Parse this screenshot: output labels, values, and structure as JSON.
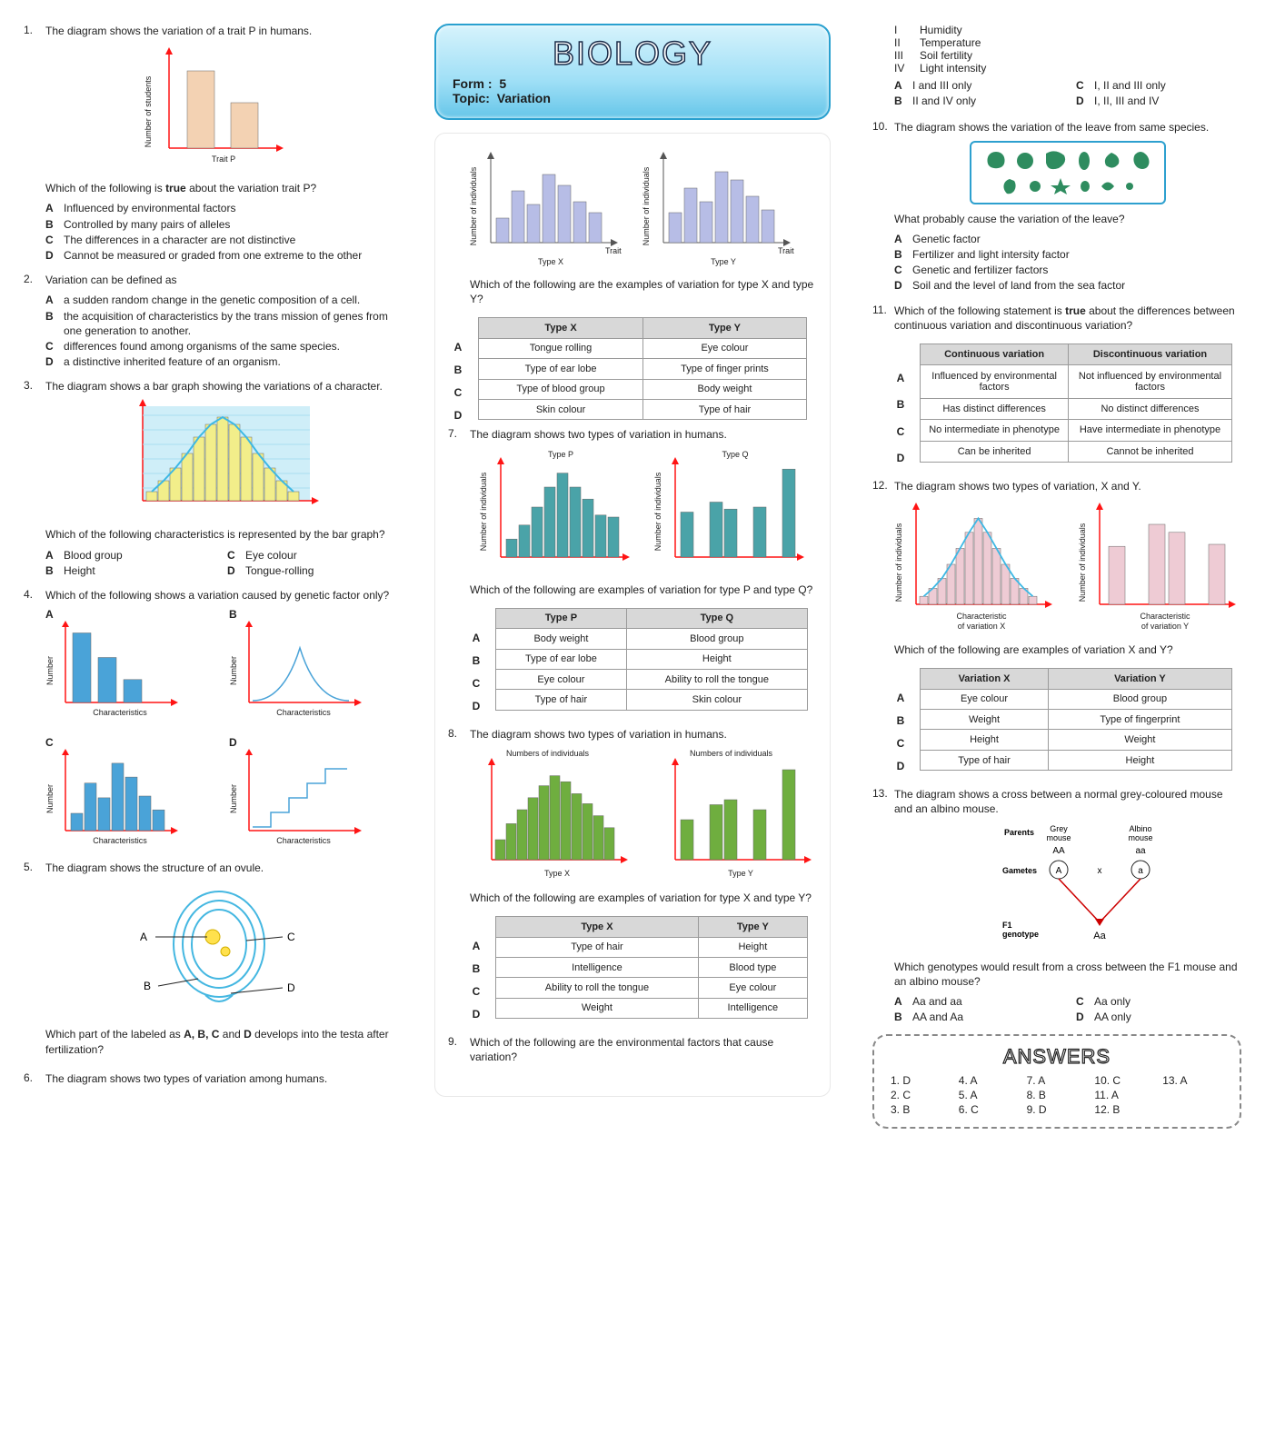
{
  "header": {
    "title": "BIOLOGY",
    "form_label": "Form :",
    "form_value": "5",
    "topic_label": "Topic:",
    "topic_value": "Variation"
  },
  "q1": {
    "num": "1.",
    "text": "The diagram shows the variation of a trait P in humans.",
    "chart": {
      "type": "bar",
      "values": [
        85,
        50
      ],
      "bar_color": "#f3d2b3",
      "axis_color": "#ff1414",
      "xlabel": "Trait P",
      "ylabel": "Number of students"
    },
    "ask_pre": "Which of the following is ",
    "ask_bold": "true",
    "ask_post": " about the variation trait P?",
    "opts": [
      {
        "l": "A",
        "t": "Influenced by environmental factors"
      },
      {
        "l": "B",
        "t": "Controlled by many pairs of alleles"
      },
      {
        "l": "C",
        "t": "The differences in a character are not distinctive"
      },
      {
        "l": "D",
        "t": "Cannot be measured or graded from one extreme to the other"
      }
    ]
  },
  "q2": {
    "num": "2.",
    "text": "Variation can be defined as",
    "opts": [
      {
        "l": "A",
        "t": "a sudden random change in the genetic composition of a cell."
      },
      {
        "l": "B",
        "t": "the acquisition of characteristics by the trans mission of genes from one generation to another."
      },
      {
        "l": "C",
        "t": "differences found among organisms of the same species."
      },
      {
        "l": "D",
        "t": "a distinctive inherited feature of an organism."
      }
    ]
  },
  "q3": {
    "num": "3.",
    "text": "The diagram shows a bar graph showing the variations of a character.",
    "chart": {
      "type": "bar-with-curve",
      "values": [
        10,
        22,
        36,
        52,
        70,
        84,
        92,
        84,
        70,
        52,
        36,
        22,
        10
      ],
      "bar_color": "#f2ee8a",
      "curve_color": "#3db8e4",
      "axis_color": "#ff1414",
      "bg": "#cfeef8"
    },
    "ask": "Which of the following characteristics is represented by the bar graph?",
    "opts": [
      {
        "l": "A",
        "t": "Blood group"
      },
      {
        "l": "C",
        "t": "Eye colour"
      },
      {
        "l": "B",
        "t": "Height"
      },
      {
        "l": "D",
        "t": "Tongue-rolling"
      }
    ]
  },
  "q4": {
    "num": "4.",
    "text": "Which of the following shows a variation caused by genetic factor only?",
    "xlabel": "Characteristics",
    "ylabel": "Number",
    "axis_color": "#ff1414",
    "A": {
      "type": "bar",
      "values": [
        85,
        55,
        28
      ],
      "bar_color": "#4aa3d8"
    },
    "B": {
      "type": "curve",
      "curve_color": "#4aa3d8"
    },
    "C": {
      "type": "bar",
      "values": [
        20,
        55,
        38,
        78,
        62,
        40,
        24
      ],
      "bar_color": "#4aa3d8"
    },
    "D": {
      "type": "step",
      "line_color": "#4aa3d8"
    }
  },
  "q5": {
    "num": "5.",
    "text": "The diagram shows the structure of an ovule.",
    "ovule_outer": "#44b7e1",
    "ovule_inner": "#ffe14d",
    "labels": [
      "A",
      "B",
      "C",
      "D"
    ],
    "ask_pre": "Which part of the labeled as ",
    "ask_bold": "A, B, C",
    "ask_mid": " and ",
    "ask_bold2": "D",
    "ask_post": " develops into the testa after fertilization?"
  },
  "q6_intro": {
    "num": "6.",
    "text": "The diagram shows two types of variation among humans."
  },
  "q6_charts": {
    "left": {
      "type": "bar",
      "values": [
        18,
        38,
        28,
        50,
        42,
        30,
        22
      ],
      "bar_color": "#b7bde6",
      "axis_color": "#555",
      "xlabel": "Trait",
      "ylabel": "Number of individuals",
      "title": "Type X"
    },
    "right": {
      "type": "bar",
      "values": [
        22,
        40,
        30,
        52,
        46,
        34,
        24
      ],
      "bar_color": "#b7bde6",
      "axis_color": "#555",
      "xlabel": "Trait",
      "ylabel": "Number of individuals",
      "title": "Type Y"
    },
    "ask": "Which of the following are the examples of variation for type X and type Y?",
    "table": {
      "headers": [
        "Type X",
        "Type Y"
      ],
      "rows": [
        {
          "l": "A",
          "c": [
            "Tongue rolling",
            "Eye colour"
          ]
        },
        {
          "l": "B",
          "c": [
            "Type of ear lobe",
            "Type of finger prints"
          ]
        },
        {
          "l": "C",
          "c": [
            "Type of blood group",
            "Body weight"
          ]
        },
        {
          "l": "D",
          "c": [
            "Skin colour",
            "Type of hair"
          ]
        }
      ]
    }
  },
  "q7": {
    "num": "7.",
    "text": "The diagram shows two types of variation in humans.",
    "left": {
      "title": "Type P",
      "values": [
        18,
        32,
        50,
        70,
        84,
        70,
        58,
        42,
        40
      ],
      "bar_color": "#4aa3a8",
      "axis_color": "#ff1414",
      "ylabel": "Number of individuals"
    },
    "right": {
      "title": "Type Q",
      "values": [
        45,
        0,
        55,
        48,
        0,
        50,
        0,
        88
      ],
      "bar_color": "#4aa3a8",
      "axis_color": "#ff1414",
      "ylabel": "Number of individuals"
    },
    "ask": "Which of the following are examples of variation for type P and type Q?",
    "table": {
      "headers": [
        "Type P",
        "Type Q"
      ],
      "rows": [
        {
          "l": "A",
          "c": [
            "Body weight",
            "Blood group"
          ]
        },
        {
          "l": "B",
          "c": [
            "Type of ear lobe",
            "Height"
          ]
        },
        {
          "l": "C",
          "c": [
            "Eye colour",
            "Ability to roll the tongue"
          ]
        },
        {
          "l": "D",
          "c": [
            "Type of hair",
            "Skin colour"
          ]
        }
      ]
    }
  },
  "q8": {
    "num": "8.",
    "text": "The diagram shows two types of variation in humans.",
    "ylabel": "Numbers of individuals",
    "left": {
      "title": "Type X",
      "values": [
        20,
        36,
        50,
        62,
        74,
        84,
        78,
        66,
        56,
        44,
        32
      ],
      "bar_color": "#6fae3f",
      "axis_color": "#ff1414"
    },
    "right": {
      "title": "Type Y",
      "values": [
        40,
        0,
        55,
        60,
        0,
        50,
        0,
        90
      ],
      "bar_color": "#6fae3f",
      "axis_color": "#ff1414"
    },
    "ask": "Which of the following are examples of variation for type X and type Y?",
    "table": {
      "headers": [
        "Type X",
        "Type Y"
      ],
      "rows": [
        {
          "l": "A",
          "c": [
            "Type of hair",
            "Height"
          ]
        },
        {
          "l": "B",
          "c": [
            "Intelligence",
            "Blood type"
          ]
        },
        {
          "l": "C",
          "c": [
            "Ability to roll the tongue",
            "Eye colour"
          ]
        },
        {
          "l": "D",
          "c": [
            "Weight",
            "Intelligence"
          ]
        }
      ]
    }
  },
  "q9_intro": {
    "num": "9.",
    "text": "Which of the following are the environmental factors that cause variation?"
  },
  "q9_roman": [
    {
      "n": "I",
      "t": "Humidity"
    },
    {
      "n": "II",
      "t": "Temperature"
    },
    {
      "n": "III",
      "t": "Soil fertility"
    },
    {
      "n": "IV",
      "t": "Light intensity"
    }
  ],
  "q9_opts": [
    {
      "l": "A",
      "t": "I and III only"
    },
    {
      "l": "C",
      "t": "I, II and III only"
    },
    {
      "l": "B",
      "t": "II and IV only"
    },
    {
      "l": "D",
      "t": "I, II, III and IV"
    }
  ],
  "q10": {
    "num": "10.",
    "text": "The diagram shows the variation of the leave from same species.",
    "leaf_fill": "#2e8c5f",
    "leaf_border": "#2da0cf",
    "ask": "What probably cause the variation of the leave?",
    "opts": [
      {
        "l": "A",
        "t": "Genetic factor"
      },
      {
        "l": "B",
        "t": "Fertilizer and light intersity factor"
      },
      {
        "l": "C",
        "t": "Genetic and fertilizer factors"
      },
      {
        "l": "D",
        "t": "Soil and the level of land from the sea factor"
      }
    ]
  },
  "q11": {
    "num": "11.",
    "text_pre": "Which of the following statement is ",
    "text_bold": "true",
    "text_post": " about the differences between continuous variation and discontinuous variation?",
    "table": {
      "headers": [
        "Continuous variation",
        "Discontinuous variation"
      ],
      "rows": [
        {
          "l": "A",
          "c": [
            "Influenced by environmental  factors",
            "Not influenced by environmental factors"
          ]
        },
        {
          "l": "B",
          "c": [
            "Has distinct differences",
            "No distinct differences"
          ]
        },
        {
          "l": "C",
          "c": [
            "No intermediate in phenotype",
            "Have intermediate in phenotype"
          ]
        },
        {
          "l": "D",
          "c": [
            "Can be inherited",
            "Cannot be inherited"
          ]
        }
      ]
    }
  },
  "q12": {
    "num": "12.",
    "text": "The diagram shows two types of variation, X and Y.",
    "left": {
      "title": "Characteristic of variation X",
      "values": [
        8,
        16,
        26,
        40,
        56,
        72,
        86,
        72,
        56,
        40,
        26,
        16,
        8
      ],
      "bar_color": "#eecbd4",
      "curve_color": "#3db8e4",
      "axis_color": "#ff1414",
      "ylabel": "Number of individuals"
    },
    "right": {
      "title": "Characteristic of variation Y",
      "values": [
        58,
        0,
        80,
        72,
        0,
        60
      ],
      "bar_color": "#eecbd4",
      "axis_color": "#ff1414",
      "ylabel": "Number of individuals"
    },
    "ask": "Which of the following are examples of variation X and Y?",
    "table": {
      "headers": [
        "Variation X",
        "Variation Y"
      ],
      "rows": [
        {
          "l": "A",
          "c": [
            "Eye colour",
            "Blood group"
          ]
        },
        {
          "l": "B",
          "c": [
            "Weight",
            "Type of fingerprint"
          ]
        },
        {
          "l": "C",
          "c": [
            "Height",
            "Weight"
          ]
        },
        {
          "l": "D",
          "c": [
            "Type of hair",
            "Height"
          ]
        }
      ]
    }
  },
  "q13": {
    "num": "13.",
    "text": "The diagram shows a cross between a normal grey-coloured mouse and an albino mouse.",
    "diagram": {
      "labels": {
        "parents": "Parents",
        "grey": "Grey mouse",
        "albino": "Albino mouse",
        "gametes": "Gametes",
        "x": "x",
        "f1": "F1 genotype",
        "AA": "AA",
        "aa": "aa",
        "A": "A",
        "a": "a",
        "Aa": "Aa"
      },
      "line_color": "#cc0000"
    },
    "ask": "Which genotypes would result from a cross between the F1 mouse and an albino mouse?",
    "opts": [
      {
        "l": "A",
        "t": "Aa and aa"
      },
      {
        "l": "C",
        "t": "Aa only"
      },
      {
        "l": "B",
        "t": "AA and Aa"
      },
      {
        "l": "D",
        "t": "AA only"
      }
    ]
  },
  "answers": {
    "title": "ANSWERS",
    "items": [
      {
        "n": "1.",
        "a": "D"
      },
      {
        "n": "4.",
        "a": "A"
      },
      {
        "n": "7.",
        "a": "A"
      },
      {
        "n": "10.",
        "a": "C"
      },
      {
        "n": "13.",
        "a": "A"
      },
      {
        "n": "2.",
        "a": "C"
      },
      {
        "n": "5.",
        "a": "A"
      },
      {
        "n": "8.",
        "a": "B"
      },
      {
        "n": "11.",
        "a": "A"
      },
      {
        "n": "",
        "a": ""
      },
      {
        "n": "3.",
        "a": "B"
      },
      {
        "n": "6.",
        "a": "C"
      },
      {
        "n": "9.",
        "a": "D"
      },
      {
        "n": "12.",
        "a": "B"
      },
      {
        "n": "",
        "a": ""
      }
    ]
  }
}
